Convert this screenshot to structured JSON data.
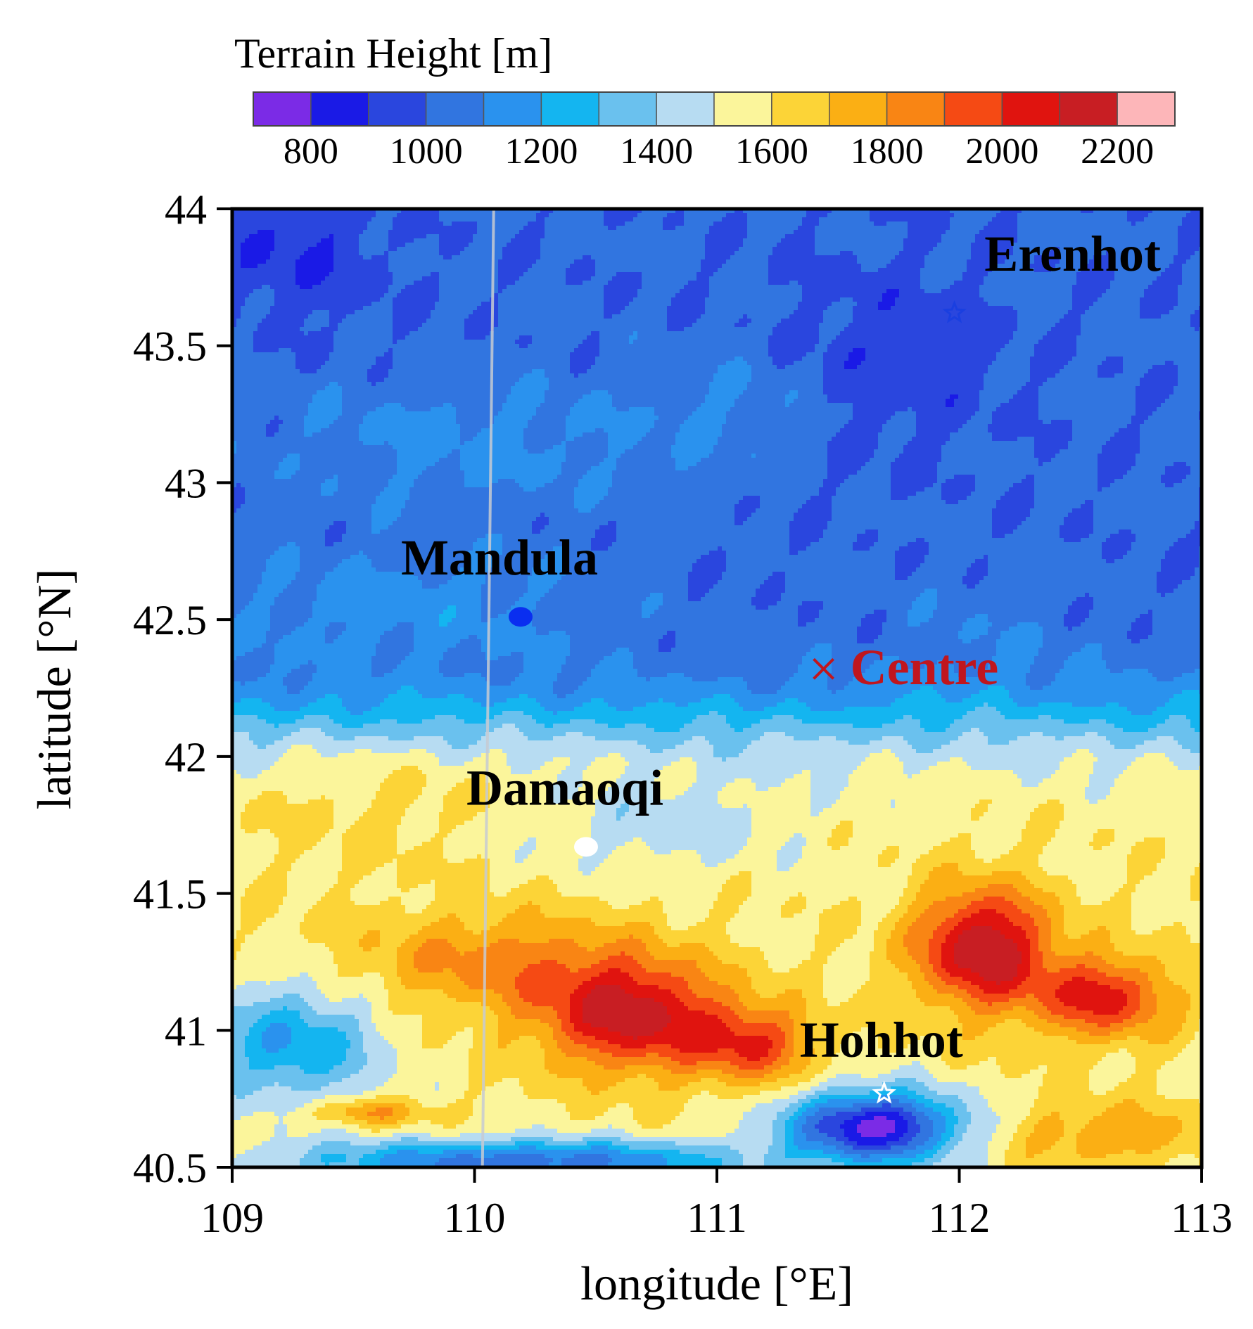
{
  "chart_data": {
    "type": "heatmap",
    "colorbar": {
      "title": "Terrain Height [m]",
      "tick_labels": [
        "800",
        "1000",
        "1200",
        "1400",
        "1600",
        "1800",
        "2000",
        "2200"
      ],
      "tick_values": [
        800,
        1000,
        1200,
        1400,
        1600,
        1800,
        2000,
        2200
      ],
      "range": [
        700,
        2300
      ],
      "bin_size": 100,
      "colors": [
        "#7b2be6",
        "#1a1ae6",
        "#2a46de",
        "#3175e0",
        "#2a92ee",
        "#14b5f0",
        "#6ac1ee",
        "#b7dcf2",
        "#fbf59b",
        "#fcd437",
        "#fbaf14",
        "#f98514",
        "#f54a14",
        "#e0140f",
        "#c81e23",
        "#fdb6b9"
      ]
    },
    "x": {
      "label": "longitude [°E]",
      "range": [
        109,
        113
      ],
      "ticks": [
        109,
        110,
        111,
        112,
        113
      ],
      "tick_labels": [
        "109",
        "110",
        "111",
        "112",
        "113"
      ]
    },
    "y": {
      "label": "latitude [°N]",
      "range": [
        40.5,
        44
      ],
      "ticks": [
        40.5,
        41,
        41.5,
        42,
        42.5,
        43,
        43.5,
        44
      ],
      "tick_labels": [
        "40.5",
        "41",
        "41.5",
        "42",
        "42.5",
        "43",
        "43.5",
        "44"
      ]
    },
    "meridian_line_lon": 110.05,
    "locations": [
      {
        "name": "Erenhot",
        "lon": 111.98,
        "lat": 43.62,
        "marker": "star",
        "marker_color": "#1a3fe0",
        "label_color": "#000000"
      },
      {
        "name": "Mandula",
        "lon": 110.19,
        "lat": 42.51,
        "marker": "dot",
        "marker_color": "#0a2ef0",
        "label_color": "#000000"
      },
      {
        "name": "Centre",
        "lon": 111.44,
        "lat": 42.32,
        "marker": "cross",
        "marker_color": "#c0161e",
        "label_color": "#c0161e"
      },
      {
        "name": "Damaoqi",
        "lon": 110.46,
        "lat": 41.67,
        "marker": "dot",
        "marker_color": "#ffffff",
        "label_color": "#000000"
      },
      {
        "name": "Hohhot",
        "lon": 111.69,
        "lat": 40.77,
        "marker": "star",
        "marker_color": "#ffffff",
        "label_color": "#000000"
      }
    ]
  }
}
